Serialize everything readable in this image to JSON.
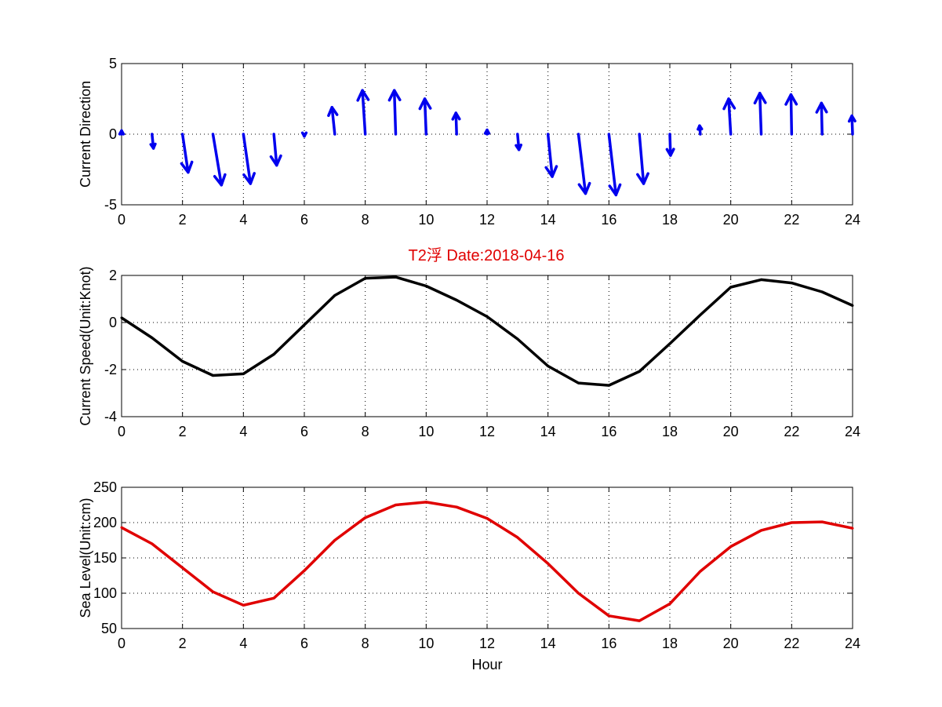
{
  "figure_title": "T2浮 Date:2018-04-16",
  "colors": {
    "direction": "#0000ee",
    "speed": "#000000",
    "sea_level": "#e00000",
    "title": "#e00000"
  },
  "chart_data": [
    {
      "type": "quiver",
      "ylabel": "Current Direction",
      "xlabel": "",
      "xlim": [
        0,
        24
      ],
      "ylim": [
        -5,
        5
      ],
      "xticks": [
        0,
        2,
        4,
        6,
        8,
        10,
        12,
        14,
        16,
        18,
        20,
        22,
        24
      ],
      "yticks": [
        -5,
        0,
        5
      ],
      "grid": true,
      "series": [
        {
          "color": "#0000ee",
          "x": [
            0,
            1,
            2,
            3,
            4,
            5,
            6,
            7,
            8,
            9,
            10,
            11,
            12,
            13,
            14,
            15,
            16,
            17,
            18,
            19,
            20,
            21,
            22,
            23,
            24
          ],
          "u": [
            0.0,
            0.1,
            0.4,
            0.6,
            0.5,
            0.2,
            0.0,
            -0.2,
            -0.2,
            -0.1,
            -0.1,
            -0.05,
            0.0,
            0.1,
            0.3,
            0.5,
            0.5,
            0.3,
            0.05,
            -0.05,
            -0.15,
            -0.1,
            -0.05,
            -0.05,
            -0.05
          ],
          "v": [
            0.25,
            -1.0,
            -2.7,
            -3.6,
            -3.5,
            -2.2,
            -0.15,
            1.9,
            3.1,
            3.1,
            2.5,
            1.5,
            0.3,
            -1.1,
            -3.0,
            -4.2,
            -4.3,
            -3.5,
            -1.5,
            0.6,
            2.5,
            2.9,
            2.8,
            2.2,
            1.3
          ]
        }
      ]
    },
    {
      "type": "line",
      "ylabel": "Current Speed(Unit:Knot)",
      "xlabel": "",
      "xlim": [
        0,
        24
      ],
      "ylim": [
        -4,
        2
      ],
      "xticks": [
        0,
        2,
        4,
        6,
        8,
        10,
        12,
        14,
        16,
        18,
        20,
        22,
        24
      ],
      "yticks": [
        -4,
        -2,
        0,
        2
      ],
      "grid": true,
      "series": [
        {
          "color": "#000000",
          "x": [
            0,
            1,
            2,
            3,
            4,
            5,
            6,
            7,
            8,
            9,
            10,
            11,
            12,
            13,
            14,
            15,
            16,
            17,
            18,
            19,
            20,
            21,
            22,
            23,
            24
          ],
          "values": [
            0.2,
            -0.65,
            -1.65,
            -2.25,
            -2.18,
            -1.35,
            -0.1,
            1.15,
            1.88,
            1.93,
            1.55,
            0.95,
            0.25,
            -0.7,
            -1.85,
            -2.57,
            -2.67,
            -2.08,
            -0.9,
            0.32,
            1.5,
            1.82,
            1.68,
            1.3,
            0.72
          ]
        }
      ]
    },
    {
      "type": "line",
      "ylabel": "Sea Level(Unit:cm)",
      "xlabel": "Hour",
      "xlim": [
        0,
        24
      ],
      "ylim": [
        50,
        250
      ],
      "xticks": [
        0,
        2,
        4,
        6,
        8,
        10,
        12,
        14,
        16,
        18,
        20,
        22,
        24
      ],
      "yticks": [
        50,
        100,
        150,
        200,
        250
      ],
      "grid": true,
      "series": [
        {
          "color": "#e00000",
          "x": [
            0,
            1,
            2,
            3,
            4,
            5,
            6,
            7,
            8,
            9,
            10,
            11,
            12,
            13,
            14,
            15,
            16,
            17,
            18,
            19,
            20,
            21,
            22,
            23,
            24
          ],
          "values": [
            193,
            170,
            136,
            102,
            83,
            93,
            132,
            175,
            207,
            225,
            229,
            222,
            206,
            179,
            142,
            100,
            68,
            61,
            85,
            131,
            166,
            189,
            200,
            201,
            192
          ]
        }
      ]
    }
  ]
}
